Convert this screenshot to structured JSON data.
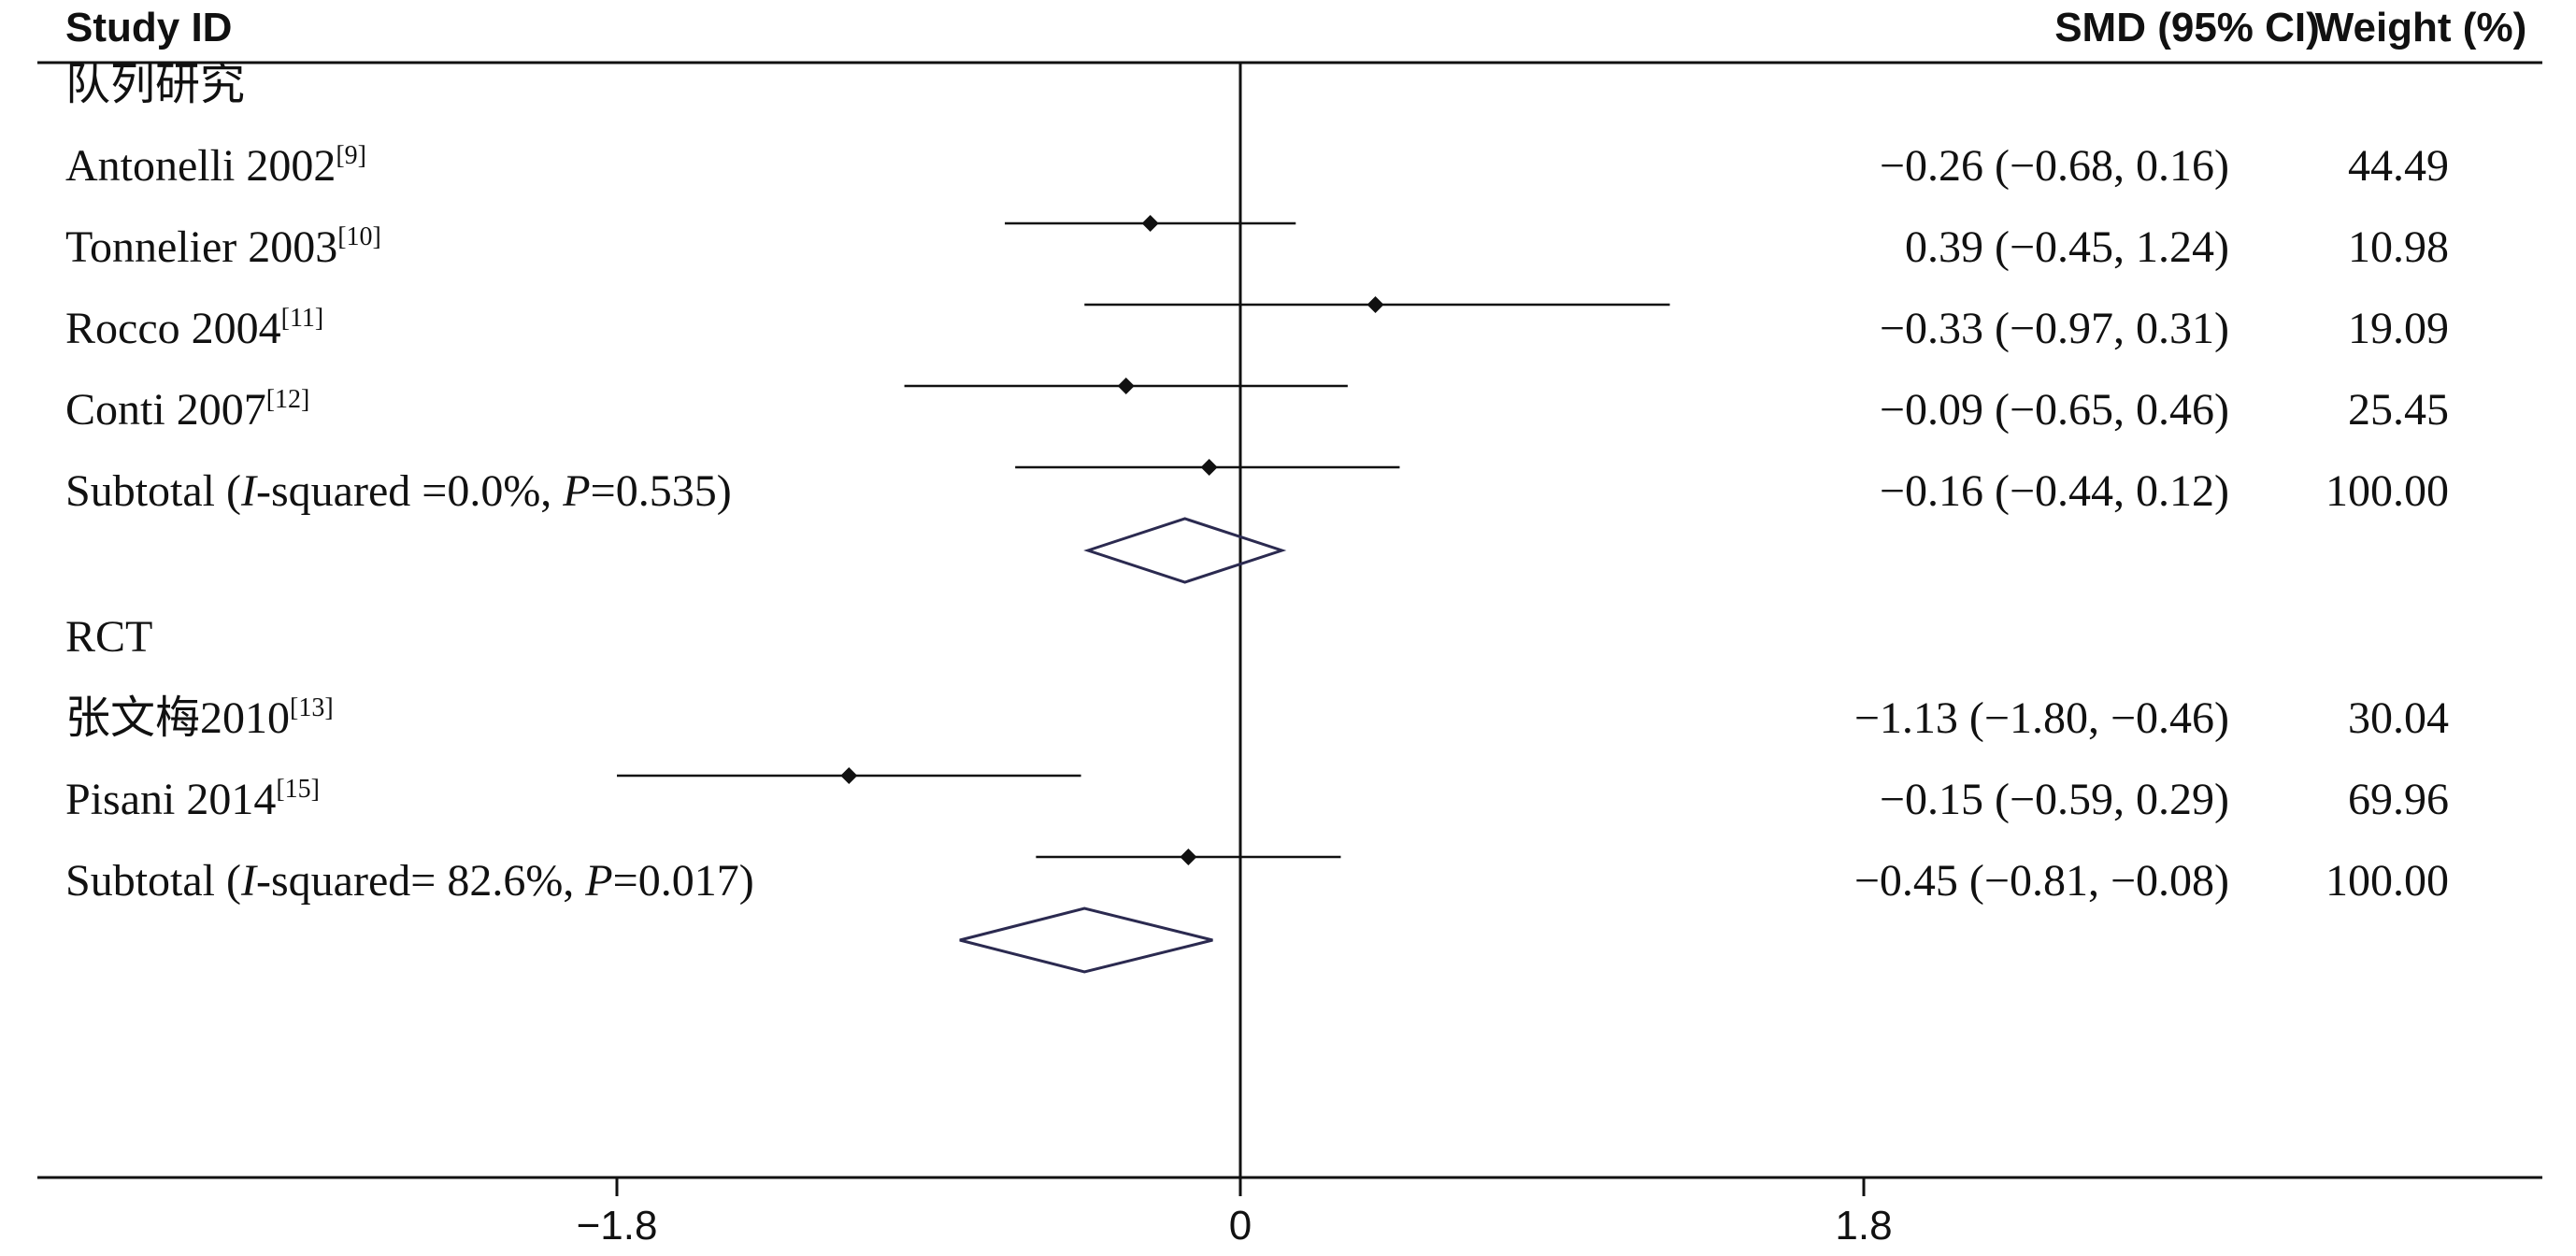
{
  "chart_data": {
    "type": "forest",
    "columns": {
      "study": "Study ID",
      "effect": "SMD (95% CI)",
      "weight": "Weight (%)"
    },
    "x_ticks": [
      "−1.8",
      "0",
      "1.8"
    ],
    "xlim": [
      -3.6,
      3.6
    ],
    "null_line": 0,
    "groups": [
      {
        "label": "队列研究",
        "studies": [
          {
            "name": "Antonelli 2002",
            "ref": "[9]",
            "smd": -0.26,
            "lo": -0.68,
            "hi": 0.16,
            "ci_text": "−0.26 (−0.68, 0.16)",
            "weight": "44.49"
          },
          {
            "name": "Tonnelier 2003",
            "ref": "[10]",
            "smd": 0.39,
            "lo": -0.45,
            "hi": 1.24,
            "ci_text": "0.39 (−0.45, 1.24)",
            "weight": "10.98"
          },
          {
            "name": "Rocco 2004",
            "ref": "[11]",
            "smd": -0.33,
            "lo": -0.97,
            "hi": 0.31,
            "ci_text": "−0.33 (−0.97, 0.31)",
            "weight": "19.09"
          },
          {
            "name": "Conti 2007",
            "ref": "[12]",
            "smd": -0.09,
            "lo": -0.65,
            "hi": 0.46,
            "ci_text": "−0.09 (−0.65, 0.46)",
            "weight": "25.45"
          }
        ],
        "subtotal": {
          "label_prefix": "Subtotal  (",
          "i_letter": "I",
          "i_text": "-squared =0.0%, ",
          "p_letter": "P",
          "p_text": "=0.535)",
          "smd": -0.16,
          "lo": -0.44,
          "hi": 0.12,
          "ci_text": "−0.16 (−0.44, 0.12)",
          "weight": "100.00"
        }
      },
      {
        "label": "RCT",
        "studies": [
          {
            "name": "张文梅2010",
            "ref": "[13]",
            "smd": -1.13,
            "lo": -1.8,
            "hi": -0.46,
            "ci_text": "−1.13 (−1.80, −0.46)",
            "weight": "30.04"
          },
          {
            "name": "Pisani 2014",
            "ref": "[15]",
            "smd": -0.15,
            "lo": -0.59,
            "hi": 0.29,
            "ci_text": "−0.15 (−0.59, 0.29)",
            "weight": "69.96"
          }
        ],
        "subtotal": {
          "label_prefix": "Subtotal  (",
          "i_letter": "I",
          "i_text": "-squared= 82.6%, ",
          "p_letter": "P",
          "p_text": "=0.017)",
          "smd": -0.45,
          "lo": -0.81,
          "hi": -0.08,
          "ci_text": "−0.45 (−0.81, −0.08)",
          "weight": "100.00"
        }
      }
    ]
  }
}
